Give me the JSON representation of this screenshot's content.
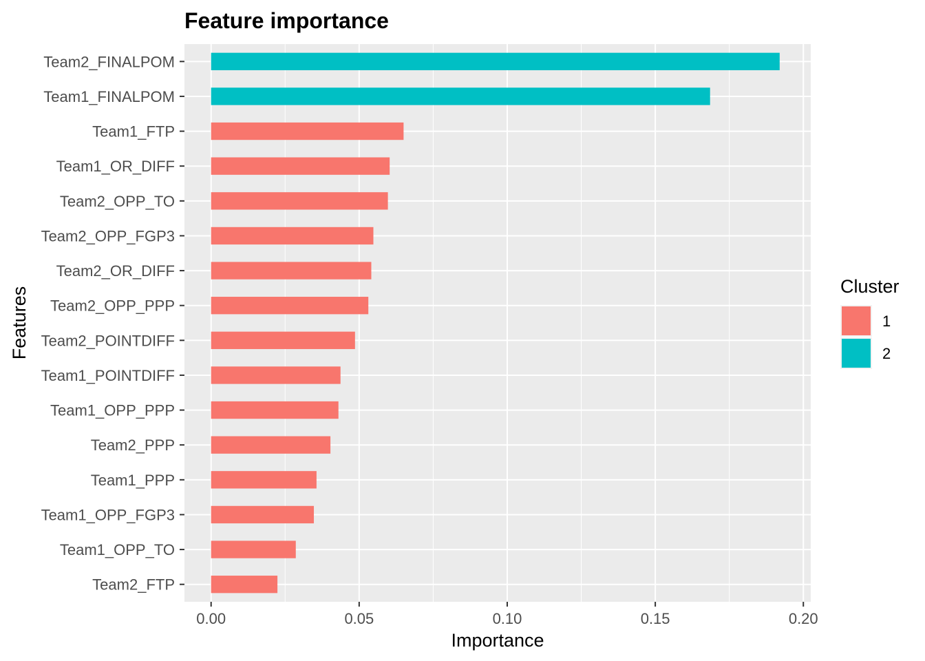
{
  "chart_data": {
    "type": "bar",
    "orientation": "horizontal",
    "title": "Feature importance",
    "xlabel": "Importance",
    "ylabel": "Features",
    "xlim": [
      -0.009,
      0.2025
    ],
    "x_ticks": [
      0.0,
      0.05,
      0.1,
      0.15,
      0.2
    ],
    "x_tick_labels": [
      "0.00",
      "0.05",
      "0.10",
      "0.15",
      "0.20"
    ],
    "grid": true,
    "legend": {
      "title": "Cluster",
      "placement": "right",
      "entries": [
        {
          "label": "1",
          "color": "#F8766D"
        },
        {
          "label": "2",
          "color": "#00BFC4"
        }
      ]
    },
    "categories": [
      "Team2_FINALPOM",
      "Team1_FINALPOM",
      "Team1_FTP",
      "Team1_OR_DIFF",
      "Team2_OPP_TO",
      "Team2_OPP_FGP3",
      "Team2_OR_DIFF",
      "Team2_OPP_PPP",
      "Team2_POINTDIFF",
      "Team1_POINTDIFF",
      "Team1_OPP_PPP",
      "Team2_PPP",
      "Team1_PPP",
      "Team1_OPP_FGP3",
      "Team1_OPP_TO",
      "Team2_FTP"
    ],
    "values": [
      0.192,
      0.1685,
      0.065,
      0.0603,
      0.0597,
      0.0548,
      0.0541,
      0.0531,
      0.0486,
      0.0437,
      0.043,
      0.0403,
      0.0356,
      0.0347,
      0.0286,
      0.0224
    ],
    "cluster": [
      "2",
      "2",
      "1",
      "1",
      "1",
      "1",
      "1",
      "1",
      "1",
      "1",
      "1",
      "1",
      "1",
      "1",
      "1",
      "1"
    ]
  }
}
